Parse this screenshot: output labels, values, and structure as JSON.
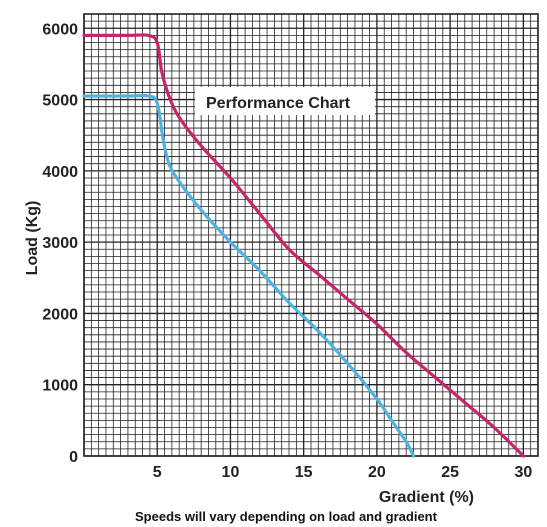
{
  "chart_data": {
    "type": "line",
    "title": "Performance Chart",
    "xlabel": "Gradient (%)",
    "ylabel": "Load (Kg)",
    "note": "Speeds will vary depending on load and gradient",
    "xlim": [
      0,
      31
    ],
    "ylim": [
      0,
      6200
    ],
    "x_ticks": [
      "5",
      "10",
      "15",
      "20",
      "25",
      "30"
    ],
    "y_ticks": [
      "0",
      "1000",
      "2000",
      "3000",
      "4000",
      "5000",
      "6000"
    ],
    "grid": true,
    "series": [
      {
        "color": "#c8246c",
        "x": [
          0,
          3,
          4.4,
          5,
          5.3,
          5.8,
          6.5,
          8,
          10,
          12,
          14,
          16,
          18,
          20,
          22,
          24,
          26,
          28,
          30
        ],
        "y": [
          5900,
          5900,
          5900,
          5800,
          5400,
          5050,
          4750,
          4350,
          3900,
          3400,
          2900,
          2550,
          2200,
          1850,
          1450,
          1100,
          750,
          400,
          0
        ]
      },
      {
        "color": "#4fb3e0",
        "x": [
          0,
          3,
          4.4,
          5,
          5.4,
          5.8,
          6.5,
          8,
          10,
          12,
          14,
          16,
          18,
          20,
          21,
          22,
          22.5
        ],
        "y": [
          5050,
          5050,
          5050,
          4950,
          4450,
          4100,
          3850,
          3450,
          3000,
          2600,
          2150,
          1750,
          1300,
          800,
          500,
          200,
          0
        ]
      }
    ],
    "colors": {
      "grid": "#222222",
      "background": "#ffffff"
    }
  }
}
